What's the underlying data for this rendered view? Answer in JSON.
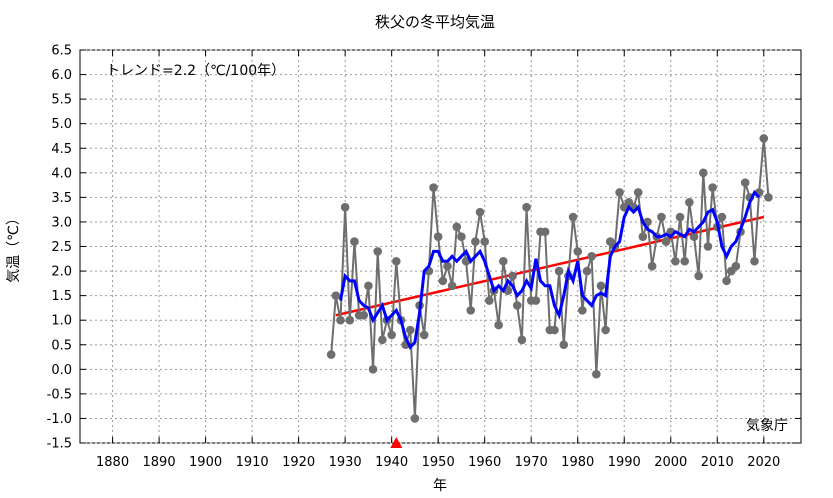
{
  "chart_data": {
    "type": "line",
    "title": "秩父の冬平均気温",
    "xlabel": "年",
    "ylabel": "気温（℃）",
    "annotation": "トレンド=2.2（℃/100年）",
    "credit": "気象庁",
    "xlim": [
      1873,
      2028
    ],
    "ylim": [
      -1.5,
      6.5
    ],
    "grid": true,
    "x_ticks": [
      1880,
      1890,
      1900,
      1910,
      1920,
      1930,
      1940,
      1950,
      1960,
      1970,
      1980,
      1990,
      2000,
      2010,
      2020
    ],
    "y_ticks": [
      "6.5",
      "6.0",
      "5.5",
      "5.0",
      "4.5",
      "4.0",
      "3.5",
      "3.0",
      "2.5",
      "2.0",
      "1.5",
      "1.0",
      "0.5",
      "0.0",
      "-0.5",
      "-1.0",
      "-1.5"
    ],
    "marker_year": 1941,
    "colors": {
      "annual": "#6e6e6e",
      "moving_average": "#0000ff",
      "trend": "#ff0000",
      "marker": "#ff0000"
    },
    "series": [
      {
        "name": "",
        "kind": "annual",
        "x": [
          1927,
          1928,
          1929,
          1930,
          1931,
          1932,
          1933,
          1934,
          1935,
          1936,
          1937,
          1938,
          1939,
          1940,
          1941,
          1942,
          1943,
          1944,
          1945,
          1946,
          1947,
          1948,
          1949,
          1950,
          1951,
          1952,
          1953,
          1954,
          1955,
          1956,
          1957,
          1958,
          1959,
          1960,
          1961,
          1962,
          1963,
          1964,
          1965,
          1966,
          1967,
          1968,
          1969,
          1970,
          1971,
          1972,
          1973,
          1974,
          1975,
          1976,
          1977,
          1978,
          1979,
          1980,
          1981,
          1982,
          1983,
          1984,
          1985,
          1986,
          1987,
          1988,
          1989,
          1990,
          1991,
          1992,
          1993,
          1994,
          1995,
          1996,
          1997,
          1998,
          1999,
          2000,
          2001,
          2002,
          2003,
          2004,
          2005,
          2006,
          2007,
          2008,
          2009,
          2010,
          2011,
          2012,
          2013,
          2014,
          2015,
          2016,
          2017,
          2018,
          2019,
          2020,
          2021
        ],
        "y": [
          0.3,
          1.5,
          1.0,
          3.3,
          1.0,
          2.6,
          1.1,
          1.1,
          1.7,
          0.0,
          2.4,
          0.6,
          1.0,
          0.7,
          2.2,
          1.0,
          0.5,
          0.8,
          -1.0,
          1.3,
          0.7,
          2.0,
          3.7,
          2.7,
          1.8,
          2.1,
          1.7,
          2.9,
          2.7,
          2.2,
          1.2,
          2.6,
          3.2,
          2.6,
          1.4,
          1.6,
          0.9,
          2.2,
          1.6,
          1.9,
          1.3,
          0.6,
          3.3,
          1.4,
          1.4,
          2.8,
          2.8,
          0.8,
          0.8,
          2.0,
          0.5,
          1.9,
          3.1,
          2.4,
          1.2,
          2.0,
          2.3,
          -0.1,
          1.7,
          0.8,
          2.6,
          2.5,
          3.6,
          3.3,
          3.4,
          3.3,
          3.6,
          2.7,
          3.0,
          2.1,
          2.7,
          3.1,
          2.6,
          2.8,
          2.2,
          3.1,
          2.2,
          3.4,
          2.7,
          1.9,
          4.0,
          2.5,
          3.7,
          2.9,
          3.1,
          1.8,
          2.0,
          2.1,
          2.8,
          3.8,
          3.5,
          2.2,
          3.6,
          4.7,
          3.5
        ]
      },
      {
        "name": "",
        "kind": "moving_average",
        "x": [
          1929,
          1930,
          1931,
          1932,
          1933,
          1934,
          1935,
          1936,
          1937,
          1938,
          1939,
          1940,
          1941,
          1942,
          1943,
          1944,
          1945,
          1946,
          1947,
          1948,
          1949,
          1950,
          1951,
          1952,
          1953,
          1954,
          1955,
          1956,
          1957,
          1958,
          1959,
          1960,
          1961,
          1962,
          1963,
          1964,
          1965,
          1966,
          1967,
          1968,
          1969,
          1970,
          1971,
          1972,
          1973,
          1974,
          1975,
          1976,
          1977,
          1978,
          1979,
          1980,
          1981,
          1982,
          1983,
          1984,
          1985,
          1986,
          1987,
          1988,
          1989,
          1990,
          1991,
          1992,
          1993,
          1994,
          1995,
          1996,
          1997,
          1998,
          1999,
          2000,
          2001,
          2002,
          2003,
          2004,
          2005,
          2006,
          2007,
          2008,
          2009,
          2010,
          2011,
          2012,
          2013,
          2014,
          2015,
          2016,
          2017,
          2018,
          2019
        ],
        "y": [
          1.4,
          1.9,
          1.8,
          1.8,
          1.4,
          1.3,
          1.25,
          1.0,
          1.15,
          1.3,
          1.0,
          1.1,
          1.2,
          1.0,
          0.65,
          0.45,
          0.55,
          1.15,
          2.0,
          2.1,
          2.4,
          2.4,
          2.2,
          2.2,
          2.3,
          2.2,
          2.3,
          2.4,
          2.2,
          2.3,
          2.4,
          2.2,
          1.9,
          1.6,
          1.7,
          1.6,
          1.8,
          1.7,
          1.5,
          1.6,
          1.8,
          1.65,
          2.25,
          1.8,
          1.7,
          1.7,
          1.3,
          1.1,
          1.5,
          2.0,
          1.8,
          2.2,
          1.5,
          1.4,
          1.3,
          1.5,
          1.55,
          1.5,
          2.3,
          2.5,
          2.6,
          3.1,
          3.3,
          3.2,
          3.3,
          3.0,
          2.85,
          2.8,
          2.7,
          2.7,
          2.75,
          2.7,
          2.8,
          2.75,
          2.7,
          2.85,
          2.8,
          2.9,
          3.0,
          3.2,
          3.25,
          3.0,
          2.5,
          2.3,
          2.5,
          2.6,
          2.85,
          3.1,
          3.4,
          3.6,
          3.5
        ]
      },
      {
        "name": "",
        "kind": "trend",
        "x": [
          1928,
          2020
        ],
        "y": [
          1.1,
          3.1
        ]
      }
    ]
  }
}
